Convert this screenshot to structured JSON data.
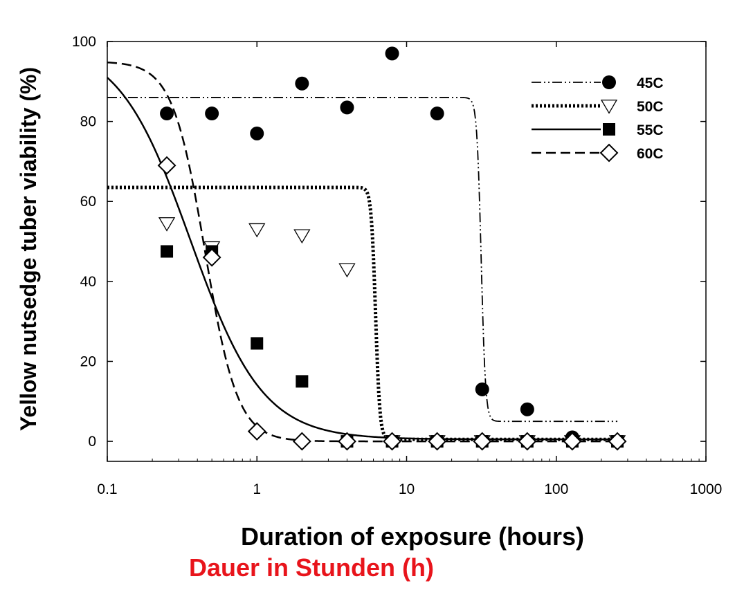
{
  "chart_data": {
    "type": "scatter",
    "xlabel": "Duration of exposure (hours)",
    "ylabel": "Yellow nutsedge tuber viability (%)",
    "xscale": "log",
    "xlim": [
      0.1,
      1000
    ],
    "ylim": [
      -5,
      100
    ],
    "x_tick_labels": [
      "0.1",
      "1",
      "10",
      "100",
      "1000"
    ],
    "y_tick_labels": [
      "0",
      "20",
      "40",
      "60",
      "80",
      "100"
    ],
    "legend_position": "top-right",
    "series": [
      {
        "name": "45C",
        "marker": "filled-circle",
        "line_style": "dash-dot-dot",
        "points": [
          [
            0.25,
            82
          ],
          [
            0.5,
            82
          ],
          [
            1,
            77
          ],
          [
            2,
            89.5
          ],
          [
            4,
            83.5
          ],
          [
            8,
            97
          ],
          [
            16,
            82
          ],
          [
            32,
            13
          ],
          [
            64,
            8
          ],
          [
            128,
            1
          ],
          [
            256,
            0
          ]
        ],
        "fit_curve": {
          "top": 86,
          "bottom": 5,
          "midpoint_hours": 31.5,
          "slope": 30,
          "x_range": [
            0.1,
            256
          ]
        }
      },
      {
        "name": "50C",
        "marker": "open-down-triangle",
        "line_style": "dotted",
        "points": [
          [
            0.25,
            54.5
          ],
          [
            0.5,
            48.5
          ],
          [
            1,
            53
          ],
          [
            2,
            51.5
          ],
          [
            4,
            43
          ],
          [
            8,
            0
          ],
          [
            16,
            0
          ],
          [
            32,
            0
          ],
          [
            64,
            0
          ],
          [
            128,
            0
          ],
          [
            256,
            0
          ]
        ],
        "fit_curve": {
          "top": 63.5,
          "bottom": 0.5,
          "midpoint_hours": 6.2,
          "slope": 30,
          "x_range": [
            0.1,
            256
          ]
        }
      },
      {
        "name": "55C",
        "marker": "filled-square",
        "line_style": "solid",
        "points": [
          [
            0.25,
            47.5
          ],
          [
            0.5,
            47.5
          ],
          [
            1,
            24.5
          ],
          [
            2,
            15
          ],
          [
            4,
            0
          ],
          [
            8,
            0
          ],
          [
            16,
            0
          ],
          [
            32,
            0
          ],
          [
            64,
            0
          ],
          [
            128,
            0
          ],
          [
            256,
            0
          ]
        ],
        "fit_curve": {
          "top": 100,
          "bottom": 0.5,
          "midpoint_hours": 0.36,
          "slope": 1.8,
          "x_range": [
            0.1,
            256
          ]
        }
      },
      {
        "name": "60C",
        "marker": "open-diamond",
        "line_style": "dashed",
        "points": [
          [
            0.25,
            69
          ],
          [
            0.5,
            46
          ],
          [
            1,
            2.5
          ],
          [
            2,
            0
          ],
          [
            4,
            0
          ],
          [
            8,
            0
          ],
          [
            16,
            0
          ],
          [
            32,
            0
          ],
          [
            64,
            0
          ],
          [
            128,
            0
          ],
          [
            256,
            0
          ]
        ],
        "fit_curve": {
          "top": 95,
          "bottom": 0,
          "midpoint_hours": 0.45,
          "slope": 4,
          "x_range": [
            0.1,
            256
          ]
        }
      }
    ]
  },
  "caption": "Dauer in Stunden (h)",
  "colors": {
    "axis": "#000000",
    "caption": "#e8141b"
  }
}
